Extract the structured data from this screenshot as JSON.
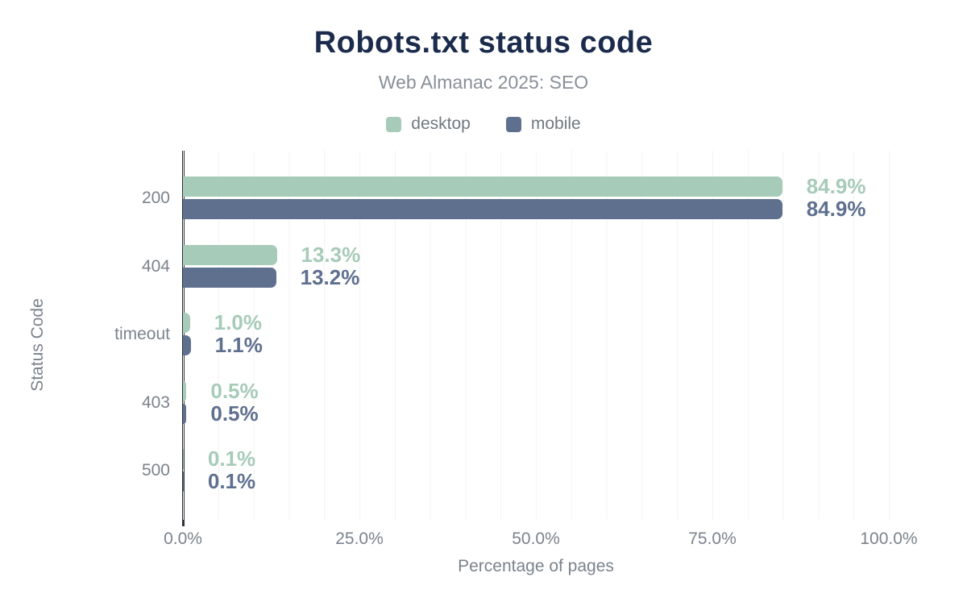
{
  "header": {
    "title": "Robots.txt status code",
    "subtitle": "Web Almanac 2025: SEO"
  },
  "legend": [
    {
      "name": "desktop",
      "label": "desktop",
      "color": "#a7cbb9"
    },
    {
      "name": "mobile",
      "label": "mobile",
      "color": "#5f708f"
    }
  ],
  "colors": {
    "desktop_bar": "#a7cbb9",
    "mobile_bar": "#5f708f",
    "title_text": "#1b2b4b",
    "subtitle_text": "#898f99",
    "axis_text": "#7b838c",
    "gridline": "#f4f4f4",
    "axis_line": "#303438"
  },
  "chart_data": {
    "type": "bar",
    "orientation": "horizontal",
    "title": "Robots.txt status code",
    "subtitle": "Web Almanac 2025: SEO",
    "categories": [
      "200",
      "404",
      "timeout",
      "403",
      "500"
    ],
    "series": [
      {
        "name": "desktop",
        "color": "#a7cbb9",
        "values": [
          84.9,
          13.3,
          1.0,
          0.5,
          0.1
        ],
        "value_labels": [
          "84.9%",
          "13.3%",
          "1.0%",
          "0.5%",
          "0.1%"
        ]
      },
      {
        "name": "mobile",
        "color": "#5f708f",
        "values": [
          84.9,
          13.2,
          1.1,
          0.5,
          0.1
        ],
        "value_labels": [
          "84.9%",
          "13.2%",
          "1.1%",
          "0.5%",
          "0.1%"
        ]
      }
    ],
    "xlabel": "Percentage of pages",
    "ylabel": "Status Code",
    "xlim": [
      0,
      105
    ],
    "xticks": [
      {
        "value": 0,
        "label": "0.0%"
      },
      {
        "value": 25,
        "label": "25.0%"
      },
      {
        "value": 50,
        "label": "50.0%"
      },
      {
        "value": 75,
        "label": "75.0%"
      },
      {
        "value": 100,
        "label": "100.0%"
      }
    ],
    "grid": "vertical minor gridlines every 5%",
    "legend_position": "top"
  }
}
